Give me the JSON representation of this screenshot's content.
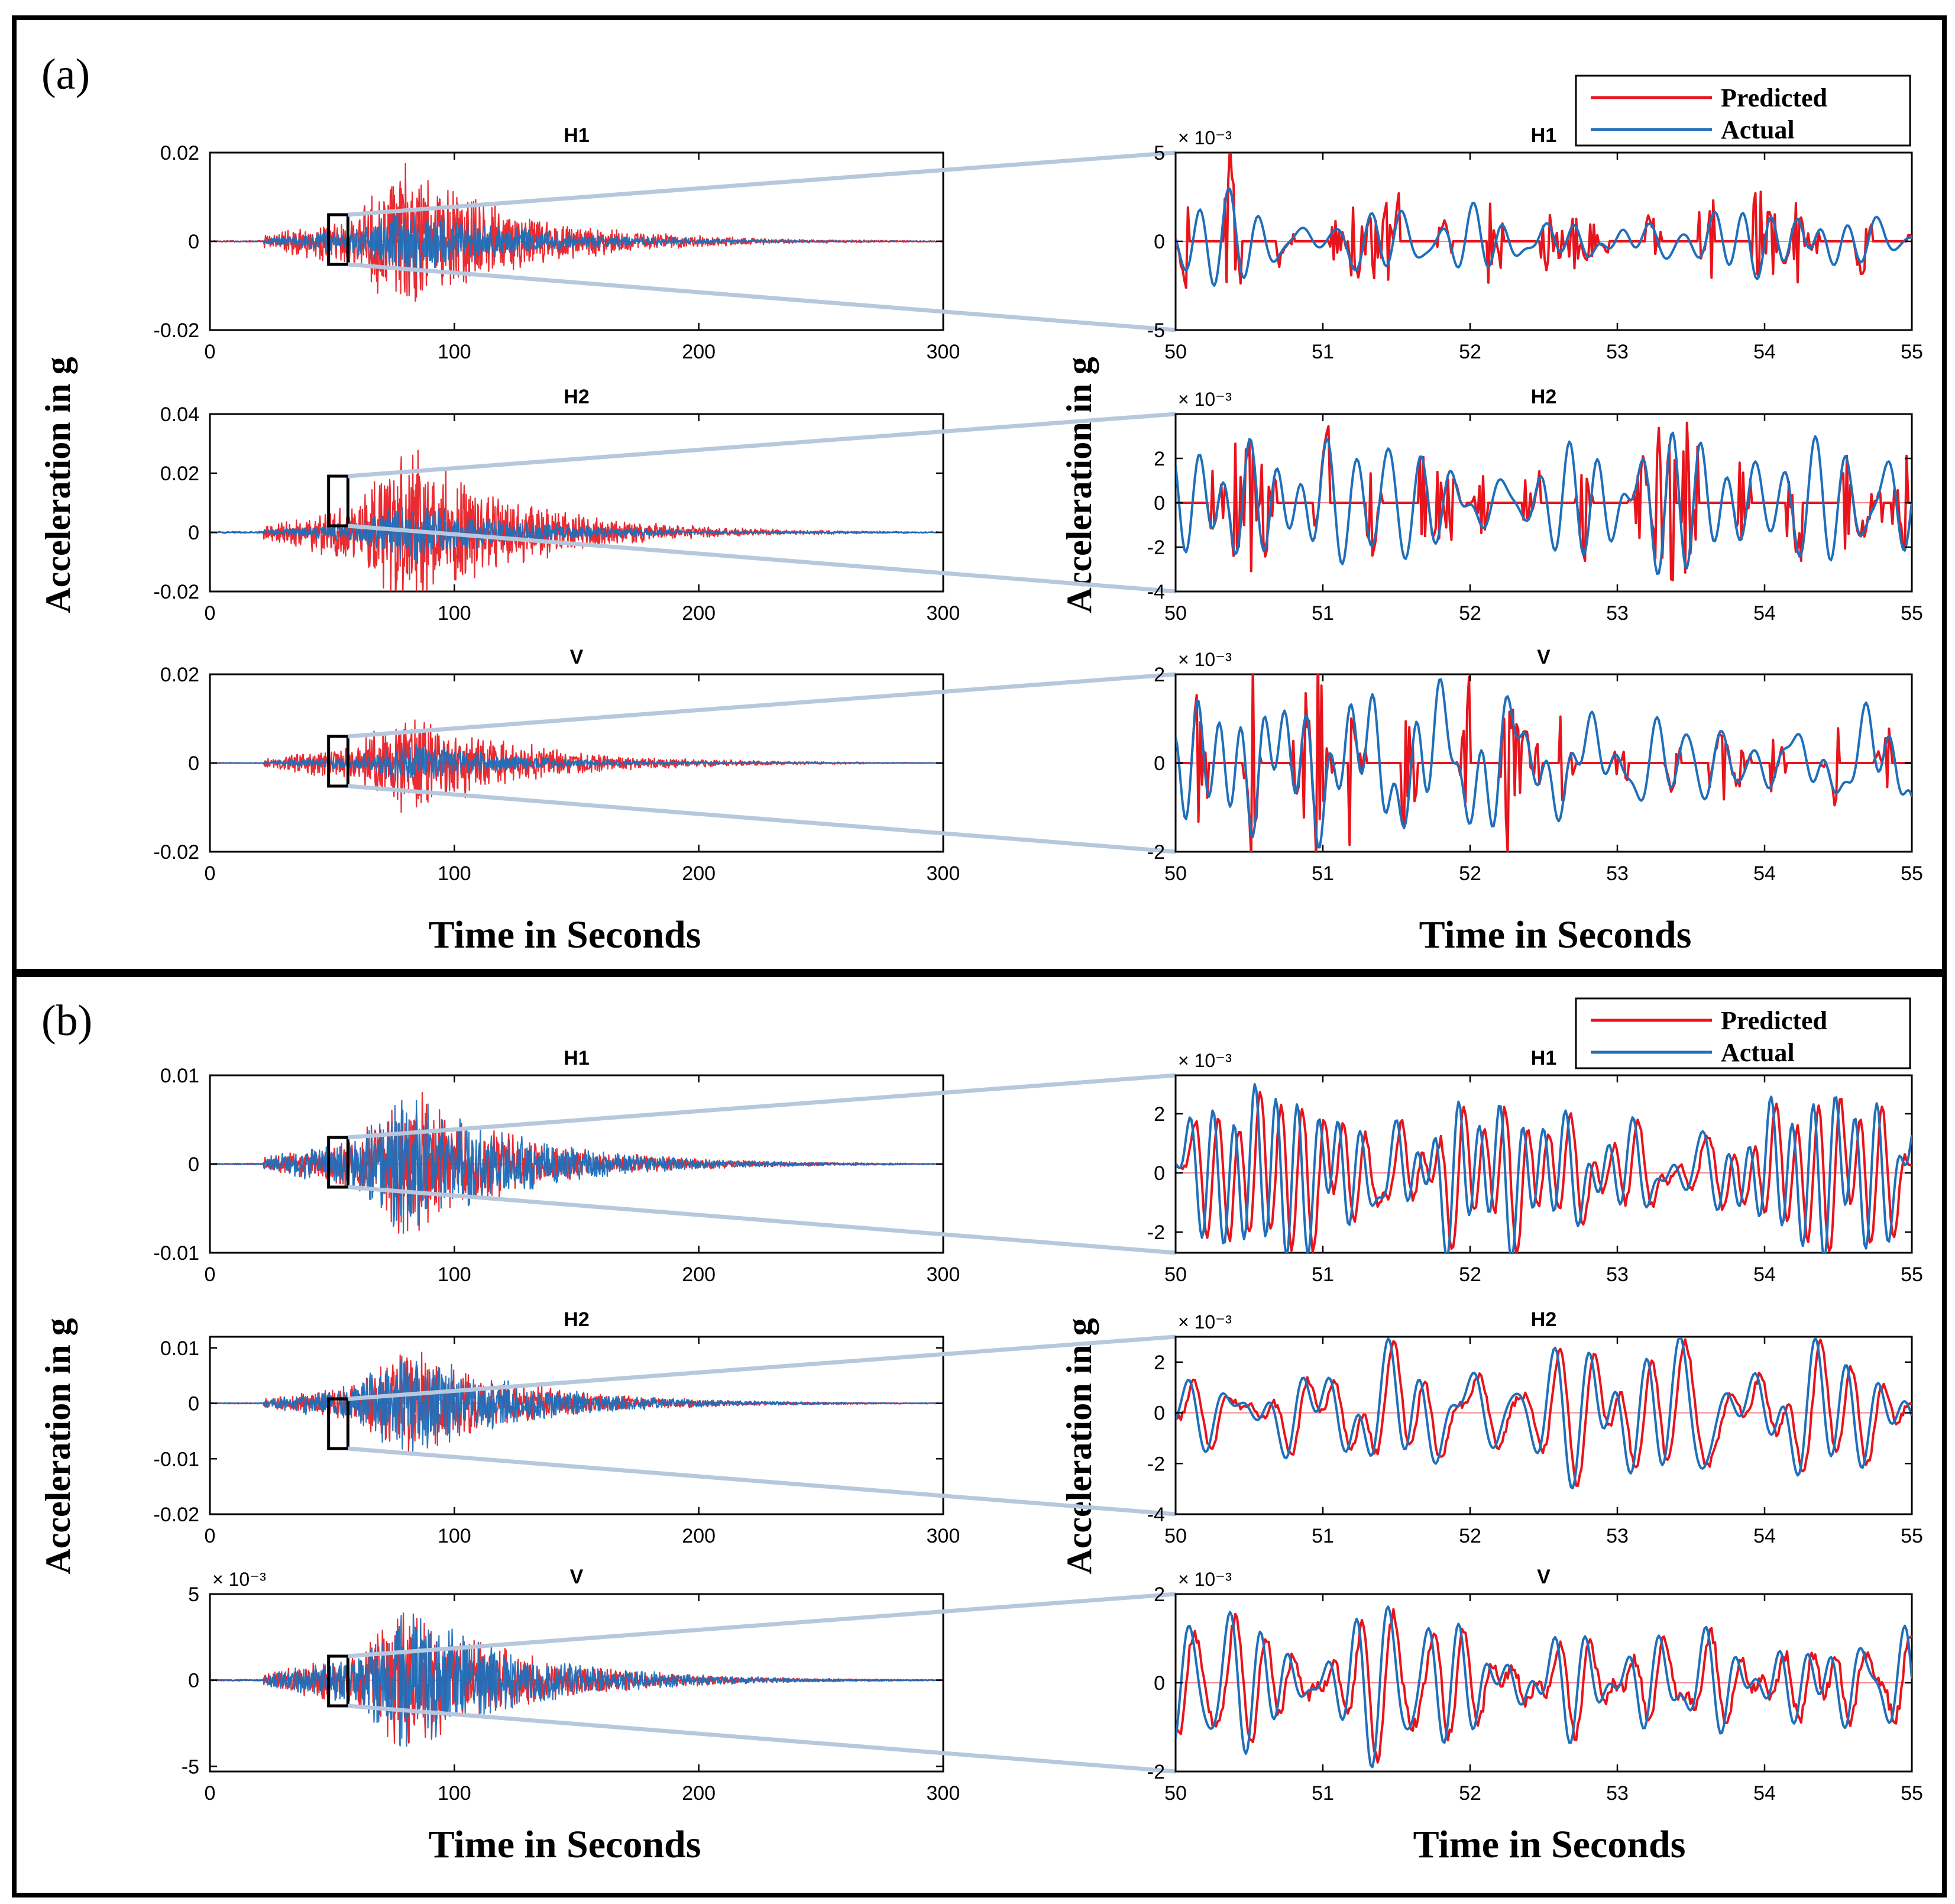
{
  "colors": {
    "predicted": "#e8141c",
    "actual": "#1f6fba",
    "zoom_connector": "#b7c8de"
  },
  "panels": [
    {
      "label": "(a)",
      "legend": {
        "predicted": "Predicted",
        "actual": "Actual"
      },
      "xlabel_left": "Time in Seconds",
      "xlabel_right": "Time in Seconds",
      "ylabel_left": "Acceleration in g",
      "ylabel_right": "Acceleration in g"
    },
    {
      "label": "(b)",
      "legend": {
        "predicted": "Predicted",
        "actual": "Actual"
      },
      "xlabel_left": "Time in Seconds",
      "xlabel_right": "Time in Seconds",
      "ylabel_left": "Acceleration in g",
      "ylabel_right": "Acceleration in g"
    }
  ],
  "chart_data": [
    {
      "panel": "(a)",
      "type": "line",
      "title": "H1",
      "exponent_label": "",
      "x_range": [
        0,
        300
      ],
      "x_ticks": [
        0,
        100,
        200,
        300
      ],
      "y_range": [
        -0.02,
        0.02
      ],
      "y_ticks": [
        -0.02,
        0,
        0.02
      ],
      "y_tick_labels": [
        "-0.02",
        "0",
        "0.02"
      ],
      "series": [
        {
          "name": "Predicted",
          "envelope_peak": 0.02
        },
        {
          "name": "Actual",
          "envelope_peak": 0.009
        }
      ],
      "zoom_window": [
        50,
        55
      ]
    },
    {
      "panel": "(a)",
      "type": "line",
      "title": "H1",
      "exponent_label": "× 10⁻³",
      "x_range": [
        50,
        55
      ],
      "x_ticks": [
        50,
        51,
        52,
        53,
        54,
        55
      ],
      "y_range": [
        -5,
        5
      ],
      "y_ticks": [
        -5,
        0,
        5
      ],
      "y_tick_labels": [
        "-5",
        "0",
        "5"
      ],
      "series": [
        {
          "name": "Predicted",
          "amplitude": 4
        },
        {
          "name": "Actual",
          "amplitude": 3
        }
      ]
    },
    {
      "panel": "(a)",
      "type": "line",
      "title": "H2",
      "exponent_label": "",
      "x_range": [
        0,
        300
      ],
      "x_ticks": [
        0,
        100,
        200,
        300
      ],
      "y_range": [
        -0.02,
        0.04
      ],
      "y_ticks": [
        -0.02,
        0,
        0.02,
        0.04
      ],
      "y_tick_labels": [
        "-0.02",
        "0",
        "0.02",
        "0.04"
      ],
      "series": [
        {
          "name": "Predicted",
          "envelope_peak": 0.033
        },
        {
          "name": "Actual",
          "envelope_peak": 0.012
        }
      ],
      "zoom_window": [
        50,
        55
      ]
    },
    {
      "panel": "(a)",
      "type": "line",
      "title": "H2",
      "exponent_label": "× 10⁻³",
      "x_range": [
        50,
        55
      ],
      "x_ticks": [
        50,
        51,
        52,
        53,
        54,
        55
      ],
      "y_range": [
        -4,
        4
      ],
      "y_ticks": [
        -4,
        -2,
        0,
        2
      ],
      "y_tick_labels": [
        "-4",
        "-2",
        "0",
        "2"
      ],
      "series": [
        {
          "name": "Predicted",
          "amplitude": 3
        },
        {
          "name": "Actual",
          "amplitude": 3.2
        }
      ]
    },
    {
      "panel": "(a)",
      "type": "line",
      "title": "V",
      "exponent_label": "",
      "x_range": [
        0,
        300
      ],
      "x_ticks": [
        0,
        100,
        200,
        300
      ],
      "y_range": [
        -0.02,
        0.02
      ],
      "y_ticks": [
        -0.02,
        0,
        0.02
      ],
      "y_tick_labels": [
        "-0.02",
        "0",
        "0.02"
      ],
      "series": [
        {
          "name": "Predicted",
          "envelope_peak": 0.014
        },
        {
          "name": "Actual",
          "envelope_peak": 0.005
        }
      ],
      "zoom_window": [
        50,
        55
      ]
    },
    {
      "panel": "(a)",
      "type": "line",
      "title": "V",
      "exponent_label": "× 10⁻³",
      "x_range": [
        50,
        55
      ],
      "x_ticks": [
        50,
        51,
        52,
        53,
        54,
        55
      ],
      "y_range": [
        -2,
        2
      ],
      "y_ticks": [
        -2,
        0,
        2
      ],
      "y_tick_labels": [
        "-2",
        "0",
        "2"
      ],
      "series": [
        {
          "name": "Predicted",
          "amplitude": 2
        },
        {
          "name": "Actual",
          "amplitude": 1.9
        }
      ]
    },
    {
      "panel": "(b)",
      "type": "line",
      "title": "H1",
      "exponent_label": "",
      "x_range": [
        0,
        300
      ],
      "x_ticks": [
        0,
        100,
        200,
        300
      ],
      "y_range": [
        -0.01,
        0.01
      ],
      "y_ticks": [
        -0.01,
        0,
        0.01
      ],
      "y_tick_labels": [
        "-0.01",
        "0",
        "0.01"
      ],
      "series": [
        {
          "name": "Predicted",
          "envelope_peak": 0.0095
        },
        {
          "name": "Actual",
          "envelope_peak": 0.0095
        }
      ],
      "zoom_window": [
        50,
        55
      ]
    },
    {
      "panel": "(b)",
      "type": "line",
      "title": "H1",
      "exponent_label": "× 10⁻³",
      "x_range": [
        50,
        55
      ],
      "x_ticks": [
        50,
        51,
        52,
        53,
        54,
        55
      ],
      "y_range": [
        -2.7,
        3.3
      ],
      "y_ticks": [
        -2,
        0,
        2
      ],
      "y_tick_labels": [
        "-2",
        "0",
        "2"
      ],
      "series": [
        {
          "name": "Predicted",
          "amplitude": 2.8
        },
        {
          "name": "Actual",
          "amplitude": 3
        }
      ]
    },
    {
      "panel": "(b)",
      "type": "line",
      "title": "H2",
      "exponent_label": "",
      "x_range": [
        0,
        300
      ],
      "x_ticks": [
        0,
        100,
        200,
        300
      ],
      "y_range": [
        -0.02,
        0.012
      ],
      "y_ticks": [
        -0.02,
        -0.01,
        0,
        0.01
      ],
      "y_tick_labels": [
        "-0.02",
        "-0.01",
        "0",
        "0.01"
      ],
      "series": [
        {
          "name": "Predicted",
          "envelope_peak": 0.011
        },
        {
          "name": "Actual",
          "envelope_peak": 0.011
        }
      ],
      "zoom_window": [
        50,
        55
      ]
    },
    {
      "panel": "(b)",
      "type": "line",
      "title": "H2",
      "exponent_label": "× 10⁻³",
      "x_range": [
        50,
        55
      ],
      "x_ticks": [
        50,
        51,
        52,
        53,
        54,
        55
      ],
      "y_range": [
        -4,
        3
      ],
      "y_ticks": [
        -4,
        -2,
        0,
        2
      ],
      "y_tick_labels": [
        "-4",
        "-2",
        "0",
        "2"
      ],
      "series": [
        {
          "name": "Predicted",
          "amplitude": 2.8
        },
        {
          "name": "Actual",
          "amplitude": 3
        }
      ]
    },
    {
      "panel": "(b)",
      "type": "line",
      "title": "V",
      "exponent_label": "× 10⁻³",
      "x_range": [
        0,
        300
      ],
      "x_ticks": [
        0,
        100,
        200,
        300
      ],
      "y_range": [
        -5.3,
        5
      ],
      "y_ticks": [
        -5,
        0,
        5
      ],
      "y_tick_labels": [
        "-5",
        "0",
        "5"
      ],
      "series": [
        {
          "name": "Predicted",
          "envelope_peak": 4.8
        },
        {
          "name": "Actual",
          "envelope_peak": 4.8
        }
      ],
      "zoom_window": [
        50,
        55
      ]
    },
    {
      "panel": "(b)",
      "type": "line",
      "title": "V",
      "exponent_label": "× 10⁻³",
      "x_range": [
        50,
        55
      ],
      "x_ticks": [
        50,
        51,
        52,
        53,
        54,
        55
      ],
      "y_range": [
        -2,
        2
      ],
      "y_ticks": [
        -2,
        0,
        2
      ],
      "y_tick_labels": [
        "-2",
        "0",
        "2"
      ],
      "series": [
        {
          "name": "Predicted",
          "amplitude": 1.7
        },
        {
          "name": "Actual",
          "amplitude": 1.9
        }
      ]
    }
  ]
}
